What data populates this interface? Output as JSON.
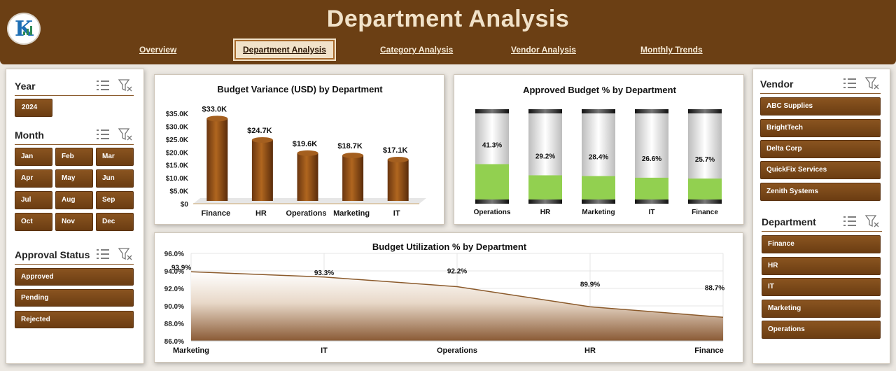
{
  "header": {
    "title": "Department Analysis",
    "tabs": [
      "Overview",
      "Department Analysis",
      "Category Analysis",
      "Vendor Analysis",
      "Monthly Trends"
    ],
    "active_tab": "Department Analysis"
  },
  "slicers": {
    "year": {
      "title": "Year",
      "items": [
        "2024"
      ]
    },
    "month": {
      "title": "Month",
      "items": [
        "Jan",
        "Feb",
        "Mar",
        "Apr",
        "May",
        "Jun",
        "Jul",
        "Aug",
        "Sep",
        "Oct",
        "Nov",
        "Dec"
      ]
    },
    "approval": {
      "title": "Approval Status",
      "items": [
        "Approved",
        "Pending",
        "Rejected"
      ]
    },
    "vendor": {
      "title": "Vendor",
      "items": [
        "ABC Supplies",
        "BrightTech",
        "Delta Corp",
        "QuickFix Services",
        "Zenith Systems"
      ]
    },
    "department": {
      "title": "Department",
      "items": [
        "Finance",
        "HR",
        "IT",
        "Marketing",
        "Operations"
      ]
    }
  },
  "colors": {
    "brand": "#6b3f14",
    "accent": "#8a5420",
    "green": "#92d050",
    "header_text": "#f1e2c9"
  },
  "chart_data": [
    {
      "type": "bar",
      "title": "Budget Variance (USD) by Department",
      "categories": [
        "Finance",
        "HR",
        "Operations",
        "Marketing",
        "IT"
      ],
      "values": [
        33.0,
        24.7,
        19.6,
        18.7,
        17.1
      ],
      "data_labels": [
        "$33.0K",
        "$24.7K",
        "$19.6K",
        "$18.7K",
        "$17.1K"
      ],
      "ylim": [
        0,
        35
      ],
      "y_ticks": [
        "$0",
        "$5.0K",
        "$10.0K",
        "$15.0K",
        "$20.0K",
        "$25.0K",
        "$30.0K",
        "$35.0K"
      ],
      "xlabel": "",
      "ylabel": ""
    },
    {
      "type": "bar",
      "title": "Approved Budget % by Department",
      "categories": [
        "Operations",
        "HR",
        "Marketing",
        "IT",
        "Finance"
      ],
      "values": [
        41.3,
        29.2,
        28.4,
        26.6,
        25.7
      ],
      "data_labels": [
        "41.3%",
        "29.2%",
        "28.4%",
        "26.6%",
        "25.7%"
      ],
      "ylim": [
        0,
        100
      ]
    },
    {
      "type": "area",
      "title": "Budget Utilization % by Department",
      "categories": [
        "Marketing",
        "IT",
        "Operations",
        "HR",
        "Finance"
      ],
      "values": [
        93.9,
        93.3,
        92.2,
        89.9,
        88.7
      ],
      "data_labels": [
        "93.9%",
        "93.3%",
        "92.2%",
        "89.9%",
        "88.7%"
      ],
      "ylim": [
        86,
        96
      ],
      "y_ticks": [
        "86.0%",
        "88.0%",
        "90.0%",
        "92.0%",
        "94.0%",
        "96.0%"
      ]
    }
  ]
}
